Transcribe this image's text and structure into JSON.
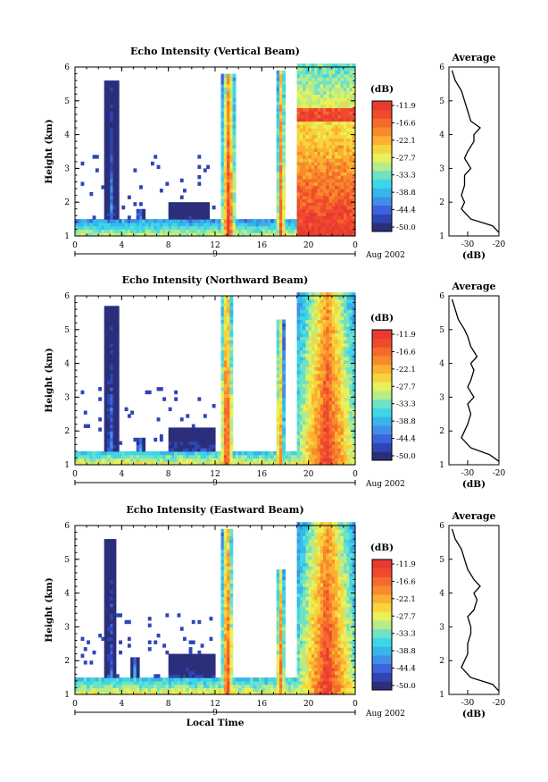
{
  "figure": {
    "xlabel": "Local Time",
    "date_label": "Aug 2002",
    "day_label": "9",
    "avg_title": "Average",
    "avg_xlabel": "(dB)",
    "colorbar_title": "(dB)",
    "colorbar_ticks": [
      "-11.9",
      "-16.6",
      "-22.1",
      "-27.7",
      "-33.3",
      "-38.8",
      "-44.4",
      "-50.0"
    ],
    "colors": {
      "background": "#ffffff",
      "colormap": [
        "#2b2f7a",
        "#2f45b5",
        "#3d62dc",
        "#3f8fe6",
        "#36b6ea",
        "#3dd6e8",
        "#6fe2c3",
        "#b5ec8a",
        "#e8f05a",
        "#f8d43c",
        "#fbb032",
        "#f88a2c",
        "#f56a2c",
        "#f04a2e",
        "#e83a30"
      ]
    }
  },
  "chart_data": [
    {
      "type": "heatmap",
      "title": "Echo Intensity (Vertical Beam)",
      "ylabel": "Height (km)",
      "xlabel": "",
      "x_ticks": [
        "0",
        "4",
        "8",
        "12",
        "16",
        "20",
        "0"
      ],
      "y_ticks": [
        "1",
        "2",
        "3",
        "4",
        "5",
        "6"
      ],
      "xlim": [
        0,
        24
      ],
      "ylim": [
        1,
        6
      ],
      "value_range_db": [
        -50.0,
        -11.9
      ],
      "features": [
        {
          "t_start": 0,
          "t_end": 24,
          "top_km": 1.45,
          "peak_db": -30,
          "desc": "low layer"
        },
        {
          "t_start": 2.6,
          "t_end": 3.6,
          "top_km": 5.5,
          "peak_db": -40
        },
        {
          "t_start": 5.3,
          "t_end": 5.8,
          "top_km": 1.8,
          "peak_db": -30
        },
        {
          "t_start": 8,
          "t_end": 11.5,
          "top_km": 2.0,
          "peak_db": -45
        },
        {
          "t_start": 12.7,
          "t_end": 13.6,
          "top_km": 5.7,
          "peak_db": -12
        },
        {
          "t_start": 17.4,
          "t_end": 17.9,
          "top_km": 5.8,
          "peak_db": -14
        },
        {
          "t_start": 19.2,
          "t_end": 24,
          "top_km": 6.0,
          "peak_db": -12,
          "desc": "rain band"
        }
      ],
      "average_profile": {
        "xlim": [
          -36,
          -20
        ],
        "x_ticks": [
          "-30",
          "-20"
        ],
        "height_km": [
          1.1,
          1.3,
          1.5,
          1.8,
          2.0,
          2.2,
          2.5,
          2.8,
          3.0,
          3.3,
          3.5,
          3.8,
          4.0,
          4.2,
          4.4,
          4.7,
          5.0,
          5.3,
          5.6,
          5.9
        ],
        "db": [
          -20,
          -22,
          -29,
          -32,
          -31,
          -32,
          -31,
          -31,
          -29,
          -31,
          -30,
          -28,
          -28,
          -26,
          -29,
          -30,
          -31,
          -32,
          -34,
          -35
        ]
      }
    },
    {
      "type": "heatmap",
      "title": "Echo Intensity (Northward Beam)",
      "ylabel": "Height (km)",
      "xlabel": "",
      "x_ticks": [
        "0",
        "4",
        "8",
        "12",
        "16",
        "20",
        "0"
      ],
      "y_ticks": [
        "1",
        "2",
        "3",
        "4",
        "5",
        "6"
      ],
      "xlim": [
        0,
        24
      ],
      "ylim": [
        1,
        6
      ],
      "value_range_db": [
        -50.0,
        -11.9
      ],
      "features": [
        {
          "t_start": 0,
          "t_end": 24,
          "top_km": 1.4,
          "peak_db": -28
        },
        {
          "t_start": 2.5,
          "t_end": 3.6,
          "top_km": 5.6,
          "peak_db": -40
        },
        {
          "t_start": 5.3,
          "t_end": 5.8,
          "top_km": 1.8,
          "peak_db": -30
        },
        {
          "t_start": 8,
          "t_end": 12,
          "top_km": 2.1,
          "peak_db": -44
        },
        {
          "t_start": 12.6,
          "t_end": 13.4,
          "top_km": 5.9,
          "peak_db": -12
        },
        {
          "t_start": 17.3,
          "t_end": 17.8,
          "top_km": 5.2,
          "peak_db": -16
        },
        {
          "t_start": 19.2,
          "t_end": 24,
          "top_km": 6.0,
          "peak_db": -12
        }
      ],
      "average_profile": {
        "xlim": [
          -36,
          -20
        ],
        "x_ticks": [
          "-30",
          "-20"
        ],
        "height_km": [
          1.1,
          1.3,
          1.5,
          1.8,
          2.0,
          2.2,
          2.5,
          2.8,
          3.0,
          3.3,
          3.5,
          3.8,
          4.0,
          4.2,
          4.5,
          4.8,
          5.0,
          5.3,
          5.6,
          5.9
        ],
        "db": [
          -20,
          -23,
          -29,
          -32,
          -31,
          -30,
          -29,
          -30,
          -28,
          -30,
          -29,
          -28,
          -29,
          -27,
          -29,
          -30,
          -31,
          -33,
          -34,
          -35
        ]
      }
    },
    {
      "type": "heatmap",
      "title": "Echo Intensity (Eastward Beam)",
      "ylabel": "Height (km)",
      "xlabel": "Local Time",
      "x_ticks": [
        "0",
        "4",
        "8",
        "12",
        "16",
        "20",
        "0"
      ],
      "y_ticks": [
        "1",
        "2",
        "3",
        "4",
        "5",
        "6"
      ],
      "xlim": [
        0,
        24
      ],
      "ylim": [
        1,
        6
      ],
      "value_range_db": [
        -50.0,
        -11.9
      ],
      "features": [
        {
          "t_start": 0,
          "t_end": 24,
          "top_km": 1.5,
          "peak_db": -28
        },
        {
          "t_start": 2.6,
          "t_end": 3.5,
          "top_km": 5.5,
          "peak_db": -40
        },
        {
          "t_start": 4.9,
          "t_end": 5.4,
          "top_km": 2.1,
          "peak_db": -32
        },
        {
          "t_start": 8,
          "t_end": 12,
          "top_km": 2.2,
          "peak_db": -44
        },
        {
          "t_start": 12.7,
          "t_end": 13.4,
          "top_km": 5.8,
          "peak_db": -12
        },
        {
          "t_start": 17.3,
          "t_end": 17.9,
          "top_km": 4.7,
          "peak_db": -16
        },
        {
          "t_start": 19.2,
          "t_end": 24,
          "top_km": 6.0,
          "peak_db": -12
        }
      ],
      "average_profile": {
        "xlim": [
          -36,
          -20
        ],
        "x_ticks": [
          "-30",
          "-20"
        ],
        "height_km": [
          1.1,
          1.3,
          1.5,
          1.8,
          2.0,
          2.2,
          2.5,
          2.8,
          3.0,
          3.3,
          3.5,
          3.8,
          4.0,
          4.2,
          4.4,
          4.7,
          5.0,
          5.3,
          5.6,
          5.9
        ],
        "db": [
          -20,
          -22,
          -29,
          -32,
          -31,
          -30,
          -30,
          -29,
          -29,
          -30,
          -28,
          -27,
          -28,
          -26,
          -28,
          -30,
          -31,
          -32,
          -34,
          -35
        ]
      }
    }
  ]
}
